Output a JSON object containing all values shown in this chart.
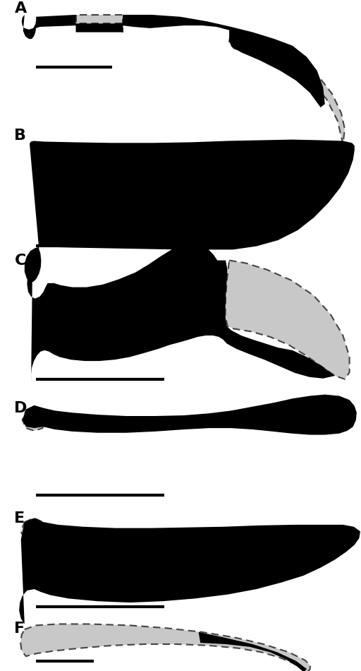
{
  "bg": "#ffffff",
  "black": "#000000",
  "gray": "#c8c8c8",
  "dash_ec": "#444444",
  "lw_dash": 1.5,
  "lw_solid": 1.8,
  "label_fs": 16,
  "panels": [
    "A",
    "B",
    "C",
    "D",
    "E",
    "F"
  ]
}
